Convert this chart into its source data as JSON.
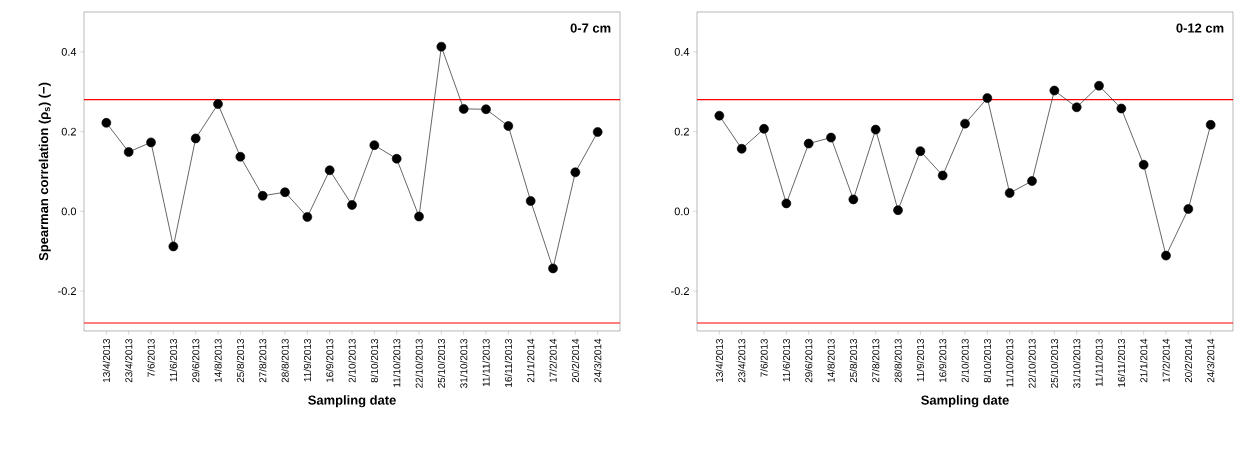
{
  "chart_data": [
    {
      "type": "line",
      "xlabel": "Sampling date",
      "ylabel": "Spearman correlation (ρ$_{s}$) (−)",
      "annotations": [
        "0-7 cm"
      ],
      "categories": [
        "13/4/2013",
        "23/4/2013",
        "7/6/2013",
        "11/6/2013",
        "29/6/2013",
        "14/8/2013",
        "25/8/2013",
        "27/8/2013",
        "28/8/2013",
        "11/9/2013",
        "16/9/2013",
        "2/10/2013",
        "8/10/2013",
        "11/10/2013",
        "22/10/2013",
        "25/10/2013",
        "31/10/2013",
        "11/11/2013",
        "16/11/2013",
        "21/1/2014",
        "17/2/2014",
        "20/2/2014",
        "24/3/2014"
      ],
      "series": [
        {
          "color": "#000000",
          "values": [
            0.222,
            0.149,
            0.173,
            -0.088,
            0.183,
            0.269,
            0.137,
            0.039,
            0.048,
            -0.014,
            0.103,
            0.016,
            0.166,
            0.132,
            -0.013,
            0.413,
            0.257,
            0.256,
            0.214,
            0.026,
            -0.143,
            0.098,
            0.199
          ]
        }
      ],
      "ylim": [
        -0.3,
        0.5
      ],
      "yticks": [
        -0.2,
        {
          "value": 0,
          "label": "0.0"
        },
        0.2,
        0.4
      ],
      "marker": "circle",
      "line_style": "solid",
      "ref_lines": [
        {
          "axis": "y",
          "value": 0.28,
          "color": "#ff0000"
        },
        {
          "axis": "y",
          "value": -0.28,
          "color": "#ff0000"
        }
      ]
    },
    {
      "type": "line",
      "xlabel": "Sampling date",
      "annotations": [
        "0-12 cm"
      ],
      "categories": [
        "13/4/2013",
        "23/4/2013",
        "7/6/2013",
        "11/6/2013",
        "29/6/2013",
        "14/8/2013",
        "25/8/2013",
        "27/8/2013",
        "28/8/2013",
        "11/9/2013",
        "16/9/2013",
        "2/10/2013",
        "8/10/2013",
        "11/10/2013",
        "22/10/2013",
        "25/10/2013",
        "31/10/2013",
        "11/11/2013",
        "16/11/2013",
        "21/1/2014",
        "17/2/2014",
        "20/2/2014",
        "24/3/2014"
      ],
      "series": [
        {
          "color": "#000000",
          "values": [
            0.24,
            0.157,
            0.207,
            0.02,
            0.17,
            0.185,
            0.03,
            0.205,
            0.003,
            0.151,
            0.09,
            0.22,
            0.284,
            0.046,
            0.076,
            0.303,
            0.261,
            0.315,
            0.258,
            0.117,
            -0.111,
            0.006,
            0.217
          ]
        }
      ],
      "ylim": [
        -0.3,
        0.5
      ],
      "yticks": [
        -0.2,
        {
          "value": 0,
          "label": "0.0"
        },
        0.2,
        0.4
      ],
      "marker": "circle",
      "line_style": "solid",
      "ref_lines": [
        {
          "axis": "y",
          "value": 0.28,
          "color": "#ff0000"
        },
        {
          "axis": "y",
          "value": -0.28,
          "color": "#ff0000"
        }
      ]
    }
  ]
}
